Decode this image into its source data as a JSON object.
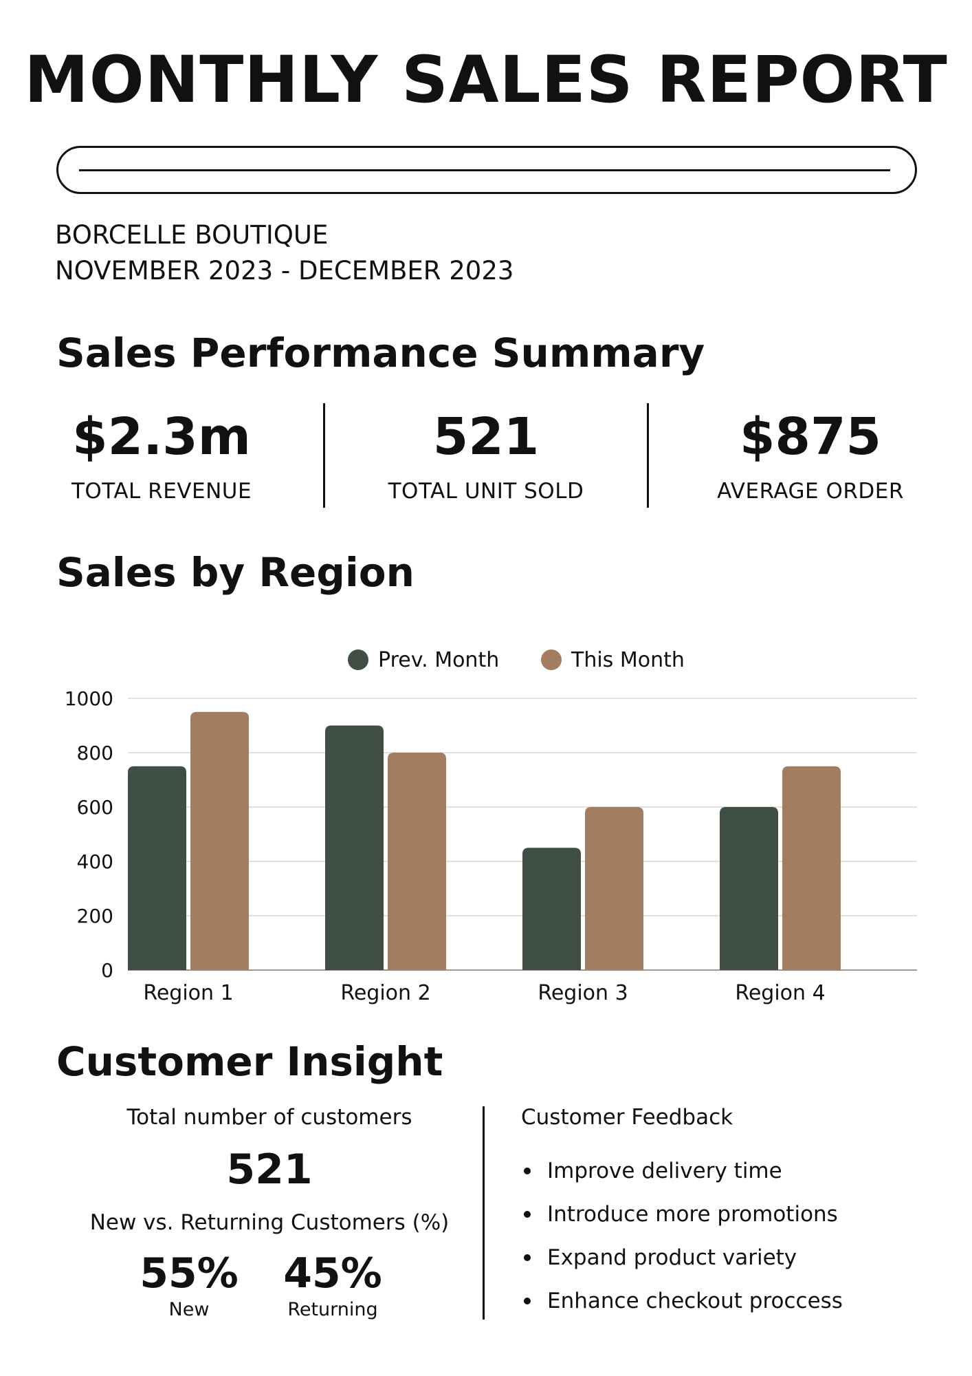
{
  "header": {
    "title": "MONTHLY SALES REPORT",
    "company": "BORCELLE BOUTIQUE",
    "period": "NOVEMBER 2023 - DECEMBER 2023"
  },
  "summary": {
    "heading": "Sales Performance Summary",
    "kpis": [
      {
        "value": "$2.3m",
        "label": "TOTAL REVENUE"
      },
      {
        "value": "521",
        "label": "TOTAL UNIT SOLD"
      },
      {
        "value": "$875",
        "label": "AVERAGE ORDER"
      }
    ]
  },
  "region": {
    "heading": "Sales by Region"
  },
  "chart_data": {
    "type": "bar",
    "categories": [
      "Region 1",
      "Region 2",
      "Region 3",
      "Region 4"
    ],
    "series": [
      {
        "name": "Prev. Month",
        "values": [
          750,
          900,
          450,
          600
        ],
        "color": "#3f4f43"
      },
      {
        "name": "This Month",
        "values": [
          950,
          800,
          600,
          750
        ],
        "color": "#a47c5f"
      }
    ],
    "ylim": [
      0,
      1000
    ],
    "yticks": [
      0,
      200,
      400,
      600,
      800,
      1000
    ],
    "grid": true,
    "legend": "top-center"
  },
  "insight": {
    "heading": "Customer Insight",
    "total_label": "Total number of customers",
    "total_value": "521",
    "split_label": "New vs. Returning Customers (%)",
    "new": {
      "value": "55%",
      "label": "New"
    },
    "returning": {
      "value": "45%",
      "label": "Returning"
    },
    "feedback_title": "Customer Feedback",
    "feedback": [
      "Improve delivery time",
      "Introduce more promotions",
      "Expand product variety",
      "Enhance checkout proccess"
    ]
  }
}
